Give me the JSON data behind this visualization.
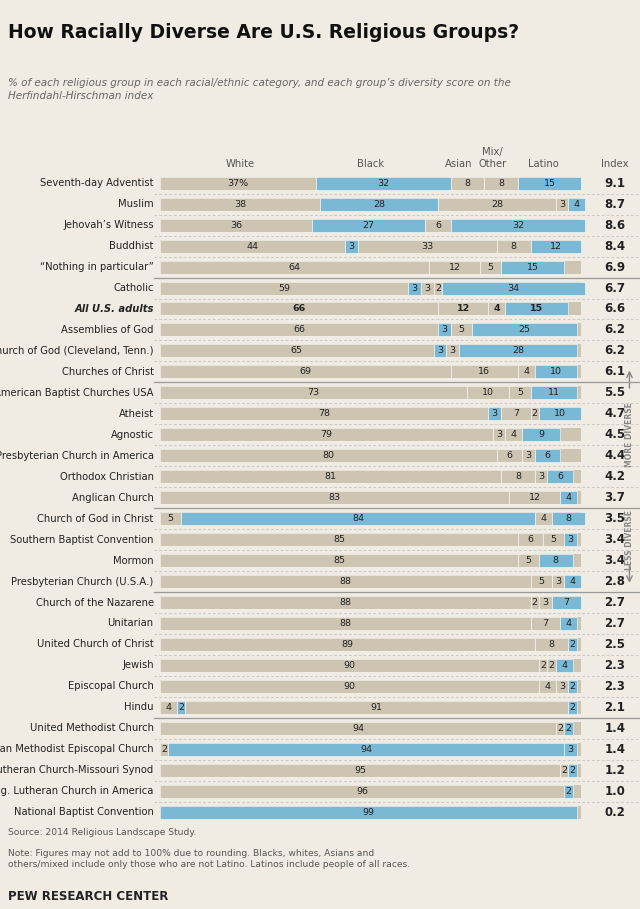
{
  "title": "How Racially Diverse Are U.S. Religious Groups?",
  "subtitle": "% of each religious group in each racial/ethnic category, and each group’s diversity score on the\nHerfindahl-Hirschman index",
  "source": "Source: 2014 Religious Landscape Study.",
  "note": "Note: Figures may not add to 100% due to rounding. Blacks, whites, Asians and\nothers/mixed include only those who are not Latino. Latinos include people of all races.",
  "footer": "PEW RESEARCH CENTER",
  "groups": [
    {
      "name": "Seventh-day Adventist",
      "white": 37,
      "black": 32,
      "asian": 8,
      "mix": 8,
      "latino": 15,
      "index": "9.1",
      "bold": false
    },
    {
      "name": "Muslim",
      "white": 38,
      "black": 28,
      "asian": 28,
      "mix": 3,
      "latino": 4,
      "index": "8.7",
      "bold": false
    },
    {
      "name": "Jehovah’s Witness",
      "white": 36,
      "black": 27,
      "asian": 6,
      "mix": 0,
      "latino": 32,
      "index": "8.6",
      "bold": false
    },
    {
      "name": "Buddhist",
      "white": 44,
      "black": 3,
      "asian": 33,
      "mix": 8,
      "latino": 12,
      "index": "8.4",
      "bold": false
    },
    {
      "name": "“Nothing in particular”",
      "white": 64,
      "black": 0,
      "asian": 12,
      "mix": 5,
      "latino": 15,
      "index": "6.9",
      "bold": false
    },
    {
      "name": "Catholic",
      "white": 59,
      "black": 3,
      "asian": 3,
      "mix": 2,
      "latino": 34,
      "index": "6.7",
      "bold": false
    },
    {
      "name": "All U.S. adults",
      "white": 66,
      "black": 0,
      "asian": 12,
      "mix": 4,
      "latino": 15,
      "index": "6.6",
      "bold": true
    },
    {
      "name": "Assemblies of God",
      "white": 66,
      "black": 3,
      "asian": 5,
      "mix": 0,
      "latino": 25,
      "index": "6.2",
      "bold": false
    },
    {
      "name": "Church of God (Cleveland, Tenn.)",
      "white": 65,
      "black": 3,
      "asian": 3,
      "mix": 0,
      "latino": 28,
      "index": "6.2",
      "bold": false
    },
    {
      "name": "Churches of Christ",
      "white": 69,
      "black": 0,
      "asian": 16,
      "mix": 4,
      "latino": 10,
      "index": "6.1",
      "bold": false
    },
    {
      "name": "American Baptist Churches USA",
      "white": 73,
      "black": 0,
      "asian": 10,
      "mix": 5,
      "latino": 11,
      "index": "5.5",
      "bold": false
    },
    {
      "name": "Atheist",
      "white": 78,
      "black": 3,
      "asian": 7,
      "mix": 2,
      "latino": 10,
      "index": "4.7",
      "bold": false
    },
    {
      "name": "Agnostic",
      "white": 79,
      "black": 0,
      "asian": 3,
      "mix": 4,
      "latino": 9,
      "index": "4.5",
      "bold": false
    },
    {
      "name": "Presbyterian Church in America",
      "white": 80,
      "black": 0,
      "asian": 6,
      "mix": 3,
      "latino": 6,
      "index": "4.4",
      "bold": false
    },
    {
      "name": "Orthodox Christian",
      "white": 81,
      "black": 0,
      "asian": 8,
      "mix": 3,
      "latino": 6,
      "index": "4.2",
      "bold": false
    },
    {
      "name": "Anglican Church",
      "white": 83,
      "black": 0,
      "asian": 12,
      "mix": 0,
      "latino": 4,
      "index": "3.7",
      "bold": false
    },
    {
      "name": "Church of God in Christ",
      "white": 5,
      "black": 84,
      "asian": 0,
      "mix": 4,
      "latino": 8,
      "index": "3.5",
      "bold": false
    },
    {
      "name": "Southern Baptist Convention",
      "white": 85,
      "black": 0,
      "asian": 6,
      "mix": 5,
      "latino": 3,
      "index": "3.4",
      "bold": false
    },
    {
      "name": "Mormon",
      "white": 85,
      "black": 0,
      "asian": 5,
      "mix": 0,
      "latino": 8,
      "index": "3.4",
      "bold": false
    },
    {
      "name": "Presbyterian Church (U.S.A.)",
      "white": 88,
      "black": 0,
      "asian": 5,
      "mix": 3,
      "latino": 4,
      "index": "2.8",
      "bold": false
    },
    {
      "name": "Church of the Nazarene",
      "white": 88,
      "black": 0,
      "asian": 2,
      "mix": 3,
      "latino": 7,
      "index": "2.7",
      "bold": false
    },
    {
      "name": "Unitarian",
      "white": 88,
      "black": 0,
      "asian": 7,
      "mix": 0,
      "latino": 4,
      "index": "2.7",
      "bold": false
    },
    {
      "name": "United Church of Christ",
      "white": 89,
      "black": 0,
      "asian": 8,
      "mix": 0,
      "latino": 2,
      "index": "2.5",
      "bold": false
    },
    {
      "name": "Jewish",
      "white": 90,
      "black": 0,
      "asian": 2,
      "mix": 2,
      "latino": 4,
      "index": "2.3",
      "bold": false
    },
    {
      "name": "Episcopal Church",
      "white": 90,
      "black": 0,
      "asian": 4,
      "mix": 3,
      "latino": 2,
      "index": "2.3",
      "bold": false
    },
    {
      "name": "Hindu",
      "white": 4,
      "black": 2,
      "asian": 91,
      "mix": 0,
      "latino": 2,
      "index": "2.1",
      "bold": false
    },
    {
      "name": "United Methodist Church",
      "white": 94,
      "black": 0,
      "asian": 0,
      "mix": 2,
      "latino": 2,
      "index": "1.4",
      "bold": false
    },
    {
      "name": "African Methodist Episcopal Church",
      "white": 2,
      "black": 94,
      "asian": 0,
      "mix": 0,
      "latino": 3,
      "index": "1.4",
      "bold": false
    },
    {
      "name": "Lutheran Church-Missouri Synod",
      "white": 95,
      "black": 0,
      "asian": 0,
      "mix": 2,
      "latino": 2,
      "index": "1.2",
      "bold": false
    },
    {
      "name": "Evang. Lutheran Church in America",
      "white": 96,
      "black": 0,
      "asian": 0,
      "mix": 0,
      "latino": 2,
      "index": "1.0",
      "bold": false
    },
    {
      "name": "National Baptist Convention",
      "white": 0,
      "black": 99,
      "asian": 0,
      "mix": 0,
      "latino": 0,
      "index": "0.2",
      "bold": false
    }
  ],
  "solid_dividers_after": [
    4,
    9,
    15,
    19,
    25
  ],
  "more_diverse_rows": [
    10,
    14
  ],
  "less_diverse_rows": [
    16,
    18
  ],
  "white_color": "#cdc5b2",
  "black_color": "#7ab9d5",
  "bg_color": "#f0ece3",
  "text_color": "#222222",
  "gray_color": "#888888"
}
